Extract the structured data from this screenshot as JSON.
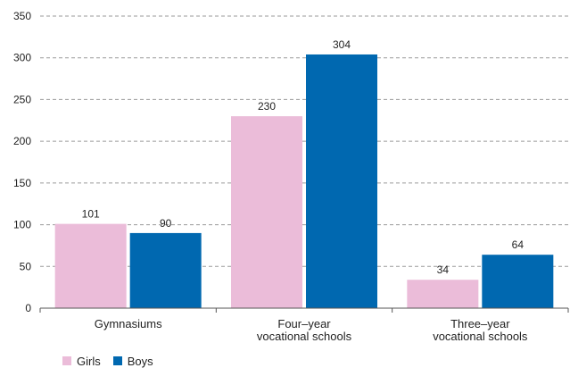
{
  "chart_data": {
    "type": "bar",
    "title": "",
    "xlabel": "",
    "ylabel": "",
    "categories": [
      [
        "Gymnasiums"
      ],
      [
        "Four–year",
        "vocational schools"
      ],
      [
        "Three–year",
        "vocational schools"
      ]
    ],
    "series": [
      {
        "name": "Girls",
        "color": "#ebbcd9",
        "values": [
          101,
          230,
          34
        ]
      },
      {
        "name": "Boys",
        "color": "#0068b0",
        "values": [
          90,
          304,
          64
        ]
      }
    ],
    "ylim": [
      0,
      350
    ],
    "yticks": [
      0,
      50,
      100,
      150,
      200,
      250,
      300,
      350
    ],
    "grid": "horizontal dashed",
    "data_labels": true,
    "legend_position": "bottom-left"
  }
}
